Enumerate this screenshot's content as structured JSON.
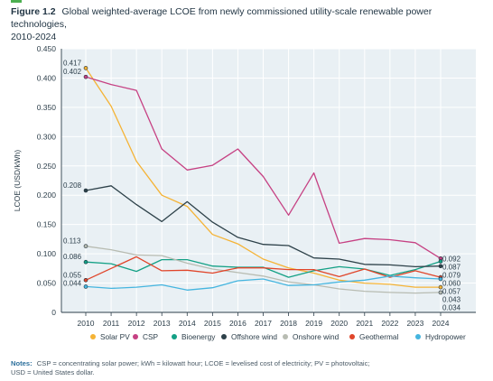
{
  "figure": {
    "label": "Figure 1.2",
    "title_line1": "Global weighted-average LCOE from newly commissioned utility-scale renewable power technologies,",
    "title_line2": "2010-2024"
  },
  "notes": {
    "label": "Notes:",
    "line1": "CSP = concentrating solar power; kWh = kilowatt hour; LCOE = levelised cost of electricity; PV = photovoltaic;",
    "line2": "USD = United States dollar."
  },
  "colors": {
    "plot_bg": "#e9f0f4",
    "grid": "#ffffff",
    "axis": "#2c3e4a",
    "title": "#1f3342",
    "notes_label": "#2b6f9c",
    "top_mark": "#4caf50"
  },
  "chart_data": {
    "type": "line",
    "title": "",
    "xlabel": "",
    "ylabel": "LCOE (USD/kWh)",
    "x": [
      2010,
      2011,
      2012,
      2013,
      2014,
      2015,
      2016,
      2017,
      2018,
      2019,
      2020,
      2021,
      2022,
      2023,
      2024
    ],
    "ylim": [
      0,
      0.45
    ],
    "yticks": [
      "0",
      "0.050",
      "0.100",
      "0.150",
      "0.200",
      "0.250",
      "0.300",
      "0.350",
      "0.400",
      "0.450"
    ],
    "ytick_values": [
      0,
      0.05,
      0.1,
      0.15,
      0.2,
      0.25,
      0.3,
      0.35,
      0.4,
      0.45
    ],
    "grid": true,
    "legend_position": "bottom",
    "series": [
      {
        "name": "Solar PV",
        "color": "#f5b335",
        "values": [
          0.417,
          0.352,
          0.258,
          0.2,
          0.181,
          0.133,
          0.117,
          0.091,
          0.076,
          0.067,
          0.055,
          0.05,
          0.048,
          0.043,
          0.043
        ]
      },
      {
        "name": "CSP",
        "color": "#c64183",
        "values": [
          0.402,
          0.389,
          0.379,
          0.279,
          0.243,
          0.251,
          0.279,
          0.232,
          0.166,
          0.238,
          0.118,
          0.126,
          0.124,
          0.119,
          0.092
        ]
      },
      {
        "name": "Bioenergy",
        "color": "#13a085",
        "values": [
          0.086,
          0.083,
          0.07,
          0.09,
          0.09,
          0.079,
          0.077,
          0.077,
          0.06,
          0.071,
          0.078,
          0.074,
          0.063,
          0.073,
          0.087
        ]
      },
      {
        "name": "Offshore wind",
        "color": "#2d4149",
        "values": [
          0.208,
          0.216,
          0.184,
          0.155,
          0.189,
          0.154,
          0.128,
          0.116,
          0.114,
          0.093,
          0.091,
          0.082,
          0.081,
          0.078,
          0.079
        ]
      },
      {
        "name": "Onshore wind",
        "color": "#b8bcb2",
        "values": [
          0.113,
          0.107,
          0.098,
          0.097,
          0.084,
          0.074,
          0.068,
          0.062,
          0.052,
          0.047,
          0.04,
          0.036,
          0.034,
          0.033,
          0.034
        ]
      },
      {
        "name": "Geothermal",
        "color": "#e0452a",
        "values": [
          0.055,
          0.075,
          0.095,
          0.071,
          0.072,
          0.067,
          0.076,
          0.076,
          0.073,
          0.073,
          0.061,
          0.074,
          0.06,
          0.071,
          0.06
        ]
      },
      {
        "name": "Hydropower",
        "color": "#45b5df",
        "values": [
          0.044,
          0.041,
          0.043,
          0.047,
          0.038,
          0.042,
          0.054,
          0.057,
          0.046,
          0.047,
          0.052,
          0.055,
          0.062,
          0.059,
          0.057
        ]
      }
    ],
    "annotations": [
      {
        "series": "Solar PV",
        "year": 2010,
        "text": "0.417",
        "side": "start"
      },
      {
        "series": "CSP",
        "year": 2010,
        "text": "0.402",
        "side": "start"
      },
      {
        "series": "Offshore wind",
        "year": 2010,
        "text": "0.208",
        "side": "start"
      },
      {
        "series": "Onshore wind",
        "year": 2010,
        "text": "0.113",
        "side": "start"
      },
      {
        "series": "Bioenergy",
        "year": 2010,
        "text": "0.086",
        "side": "start"
      },
      {
        "series": "Geothermal",
        "year": 2010,
        "text": "0.055",
        "side": "start"
      },
      {
        "series": "Hydropower",
        "year": 2010,
        "text": "0.044",
        "side": "start"
      },
      {
        "series": "CSP",
        "year": 2024,
        "text": "0.092",
        "side": "end"
      },
      {
        "series": "Bioenergy",
        "year": 2024,
        "text": "0.087",
        "side": "end"
      },
      {
        "series": "Offshore wind",
        "year": 2024,
        "text": "0.079",
        "side": "end"
      },
      {
        "series": "Geothermal",
        "year": 2024,
        "text": "0.060",
        "side": "end"
      },
      {
        "series": "Hydropower",
        "year": 2024,
        "text": "0.057",
        "side": "end"
      },
      {
        "series": "Solar PV",
        "year": 2024,
        "text": "0.043",
        "side": "end"
      },
      {
        "series": "Onshore wind",
        "year": 2024,
        "text": "0.034",
        "side": "end"
      }
    ]
  }
}
